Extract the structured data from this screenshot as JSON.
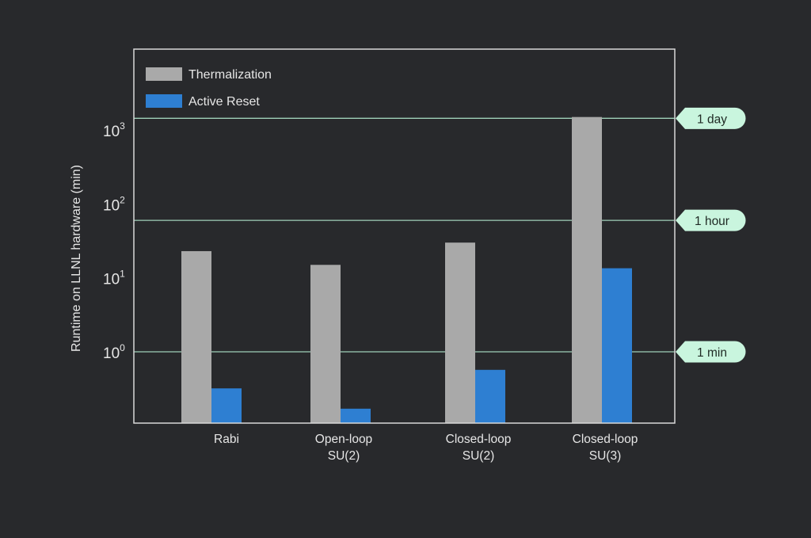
{
  "theme": {
    "background": "#28292c",
    "frame": "#d8d8d8",
    "text": "#e6e6e6",
    "ref_line": "#9fd0b9",
    "badge_fill": "#c9f5de",
    "badge_text": "#1f2a24"
  },
  "chart_data": {
    "type": "bar",
    "scale": "log",
    "ylabel": "Runtime on LLNL hardware (min)",
    "xlabel": "",
    "ylim": [
      0.1,
      10000
    ],
    "yticks": [
      {
        "value": 1,
        "base": "10",
        "exp": "0"
      },
      {
        "value": 10,
        "base": "10",
        "exp": "1"
      },
      {
        "value": 100,
        "base": "10",
        "exp": "2"
      },
      {
        "value": 1000,
        "base": "10",
        "exp": "3"
      }
    ],
    "categories": [
      {
        "line1": "Rabi",
        "line2": ""
      },
      {
        "line1": "Open-loop",
        "line2": "SU(2)"
      },
      {
        "line1": "Closed-loop",
        "line2": "SU(2)"
      },
      {
        "line1": "Closed-loop",
        "line2": "SU(3)"
      }
    ],
    "series": [
      {
        "name": "Thermalization",
        "color": "#a9a9a9",
        "values": [
          23,
          15,
          30,
          1500
        ]
      },
      {
        "name": "Active Reset",
        "color": "#2e7fd2",
        "values": [
          0.32,
          0.17,
          0.57,
          13.5
        ]
      }
    ],
    "reference_lines": [
      {
        "label": "1 day",
        "value": 1440
      },
      {
        "label": "1 hour",
        "value": 60
      },
      {
        "label": "1 min",
        "value": 1
      }
    ],
    "legend": "top-left",
    "grid": false
  }
}
